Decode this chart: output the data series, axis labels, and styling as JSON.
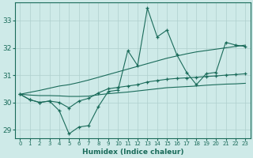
{
  "xlabel": "Humidex (Indice chaleur)",
  "bg_color": "#ceeae8",
  "grid_color": "#afd0ce",
  "line_color": "#1a6b5a",
  "x_values": [
    0,
    1,
    2,
    3,
    4,
    5,
    6,
    7,
    8,
    9,
    10,
    11,
    12,
    13,
    14,
    15,
    16,
    17,
    18,
    19,
    20,
    21,
    22,
    23
  ],
  "line1": [
    30.3,
    30.1,
    30.0,
    30.05,
    29.7,
    28.85,
    29.1,
    29.15,
    29.85,
    30.4,
    30.45,
    31.9,
    31.35,
    33.45,
    32.4,
    32.65,
    31.75,
    31.1,
    30.65,
    31.05,
    31.1,
    32.2,
    32.1,
    32.05
  ],
  "line2": [
    30.3,
    30.1,
    30.0,
    30.05,
    30.0,
    29.8,
    30.05,
    30.15,
    30.35,
    30.5,
    30.55,
    30.6,
    30.65,
    30.75,
    30.8,
    30.85,
    30.88,
    30.9,
    30.92,
    30.95,
    30.97,
    31.0,
    31.02,
    31.05
  ],
  "line3": [
    30.3,
    30.27,
    30.25,
    30.25,
    30.24,
    30.22,
    30.22,
    30.23,
    30.28,
    30.32,
    30.35,
    30.38,
    30.42,
    30.46,
    30.5,
    30.54,
    30.56,
    30.58,
    30.6,
    30.63,
    30.65,
    30.67,
    30.68,
    30.7
  ],
  "line4": [
    30.3,
    30.37,
    30.44,
    30.52,
    30.6,
    30.65,
    30.73,
    30.82,
    30.92,
    31.02,
    31.12,
    31.22,
    31.32,
    31.42,
    31.52,
    31.62,
    31.7,
    31.78,
    31.85,
    31.9,
    31.95,
    32.0,
    32.05,
    32.1
  ],
  "ylim": [
    28.7,
    33.65
  ],
  "yticks": [
    29,
    30,
    31,
    32,
    33
  ],
  "xtick_labels": [
    "0",
    "1",
    "2",
    "3",
    "4",
    "5",
    "6",
    "7",
    "8",
    "9",
    "10",
    "11",
    "12",
    "13",
    "14",
    "15",
    "16",
    "17",
    "18",
    "19",
    "20",
    "21",
    "22",
    "23"
  ]
}
